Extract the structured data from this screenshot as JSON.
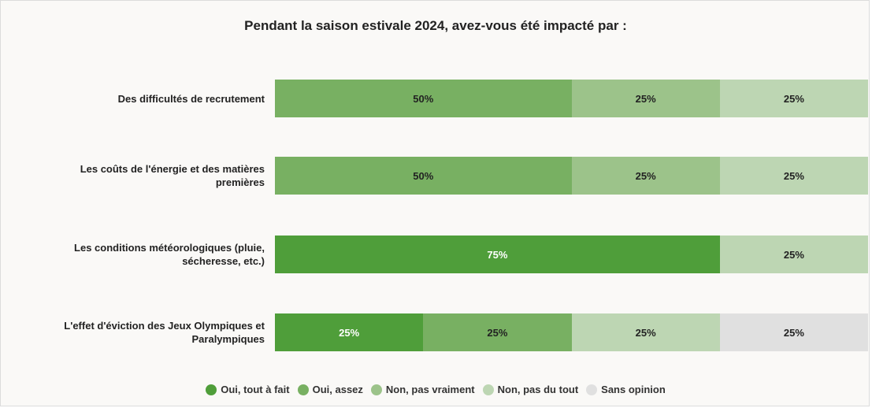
{
  "chart_data": {
    "type": "stacked-bar-horizontal",
    "title": "Pendant la saison estivale 2024, avez-vous été impacté par :",
    "categories": [
      "Des difficultés de recrutement",
      "Les coûts de l'énergie et des matières premières",
      "Les conditions météorologiques (pluie, sécheresse, etc.)",
      "L'effet d'éviction des Jeux Olympiques et Paralympiques"
    ],
    "xlim": [
      0,
      100
    ],
    "legend": "bottom",
    "series": [
      {
        "name": "Oui, tout à fait",
        "color": "#4f9e3a",
        "label_color": "#ffffff",
        "values": [
          0,
          0,
          75,
          25
        ],
        "value_labels": [
          null,
          null,
          "75%",
          "25%"
        ]
      },
      {
        "name": "Oui, assez",
        "color": "#78b062",
        "label_color": "#222222",
        "values": [
          50,
          50,
          0,
          25
        ],
        "value_labels": [
          "50%",
          "50%",
          null,
          "25%"
        ]
      },
      {
        "name": "Non, pas vraiment",
        "color": "#9cc38a",
        "label_color": "#222222",
        "values": [
          25,
          25,
          0,
          0
        ],
        "value_labels": [
          "25%",
          "25%",
          null,
          null
        ]
      },
      {
        "name": "Non, pas du tout",
        "color": "#bdd6b3",
        "label_color": "#222222",
        "values": [
          25,
          25,
          25,
          25
        ],
        "value_labels": [
          "25%",
          "25%",
          "25%",
          "25%"
        ]
      },
      {
        "name": "Sans opinion",
        "color": "#e0e0e0",
        "label_color": "#222222",
        "values": [
          0,
          0,
          0,
          25
        ],
        "value_labels": [
          null,
          null,
          null,
          "25%"
        ]
      }
    ]
  }
}
